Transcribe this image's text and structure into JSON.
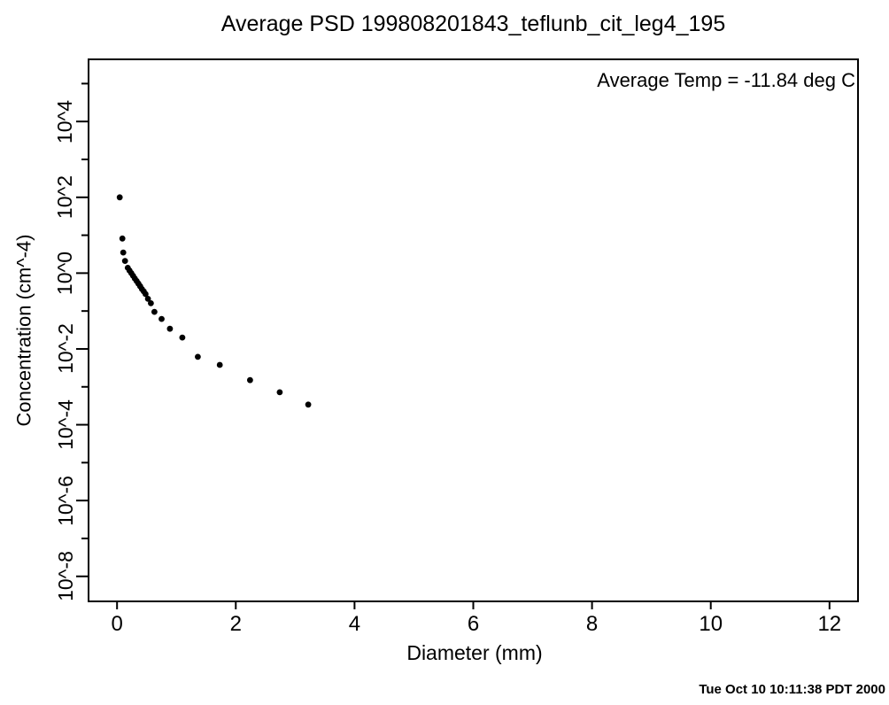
{
  "page": {
    "background": "#ffffff",
    "foreground": "#000000"
  },
  "title": "Average PSD 199808201843_teflunb_cit_leg4_195",
  "annotation": "Average Temp = -11.84 deg C",
  "timestamp": "Tue Oct 10 10:11:38 PDT 2000",
  "chart_data": {
    "type": "scatter",
    "title": "Average PSD 199808201843_teflunb_cit_leg4_195",
    "xlabel": "Diameter (mm)",
    "ylabel": "Concentration (cm^-4)",
    "annotation": "Average Temp = -11.84 deg C",
    "grid": false,
    "marker": {
      "shape": "dot",
      "color": "#000000",
      "radius_px": 3.4
    },
    "x_axis": {
      "ticks": [
        0,
        2,
        4,
        6,
        8,
        10,
        12
      ],
      "tick_labels": [
        "0",
        "2",
        "4",
        "6",
        "8",
        "10",
        "12"
      ],
      "range": [
        -0.48,
        12.48
      ]
    },
    "y_axis": {
      "scale": "log10",
      "major_tick_exponents": [
        4,
        2,
        0,
        -2,
        -4,
        -6,
        -8
      ],
      "major_tick_labels": [
        "10^4",
        "10^2",
        "10^0",
        "10^-2",
        "10^-4",
        "10^-6",
        "10^-8"
      ],
      "minor_tick_exponents": [
        5,
        3,
        1,
        -1,
        -3,
        -5,
        -7
      ],
      "range_exponents": [
        -8.66,
        5.64
      ]
    },
    "points": [
      [
        0.045,
        100
      ],
      [
        0.09,
        8.2
      ],
      [
        0.105,
        3.5
      ],
      [
        0.135,
        2.1
      ],
      [
        0.18,
        1.38
      ],
      [
        0.21,
        1.17
      ],
      [
        0.24,
        1.0
      ],
      [
        0.27,
        0.85
      ],
      [
        0.3,
        0.72
      ],
      [
        0.33,
        0.62
      ],
      [
        0.36,
        0.53
      ],
      [
        0.39,
        0.45
      ],
      [
        0.42,
        0.38
      ],
      [
        0.45,
        0.33
      ],
      [
        0.48,
        0.28
      ],
      [
        0.52,
        0.21
      ],
      [
        0.57,
        0.16
      ],
      [
        0.63,
        0.095
      ],
      [
        0.75,
        0.062
      ],
      [
        0.89,
        0.034
      ],
      [
        1.1,
        0.02
      ],
      [
        1.36,
        0.0062
      ],
      [
        1.73,
        0.0038
      ],
      [
        2.24,
        0.0015
      ],
      [
        2.74,
        0.00072
      ],
      [
        3.22,
        0.00034
      ]
    ]
  }
}
